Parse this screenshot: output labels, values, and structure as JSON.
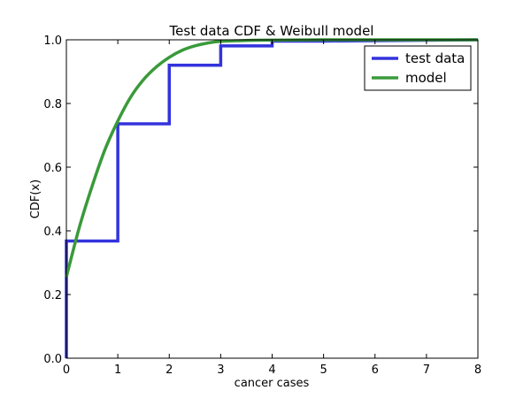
{
  "chart_data": {
    "type": "line",
    "title": "Test data CDF & Weibull model",
    "xlabel": "cancer cases",
    "ylabel": "CDF(x)",
    "xlim": [
      0,
      8
    ],
    "ylim": [
      0,
      1
    ],
    "xticks": [
      "0",
      "1",
      "2",
      "3",
      "4",
      "5",
      "6",
      "7",
      "8"
    ],
    "yticks": [
      "0.0",
      "0.2",
      "0.4",
      "0.6",
      "0.8",
      "1.0"
    ],
    "grid": false,
    "legend_position": "top-right",
    "series": [
      {
        "name": "test data",
        "style": "step",
        "color": "#3333dd",
        "x": [
          0,
          0,
          1,
          1,
          2,
          2,
          3,
          3,
          4,
          4,
          5,
          8
        ],
        "y": [
          0,
          0.368,
          0.368,
          0.736,
          0.736,
          0.92,
          0.92,
          0.981,
          0.981,
          0.996,
          0.996,
          1.0
        ]
      },
      {
        "name": "model",
        "style": "curve",
        "color": "#3a9a3a",
        "x": [
          0,
          0.25,
          0.5,
          0.75,
          1.0,
          1.25,
          1.5,
          1.75,
          2.0,
          2.25,
          2.5,
          2.75,
          3.0,
          3.5,
          4.0,
          5.0,
          6.0,
          8.0
        ],
        "y": [
          0.255,
          0.41,
          0.54,
          0.655,
          0.745,
          0.82,
          0.875,
          0.915,
          0.945,
          0.967,
          0.981,
          0.99,
          0.995,
          0.998,
          0.999,
          1.0,
          1.0,
          1.0
        ]
      }
    ]
  }
}
